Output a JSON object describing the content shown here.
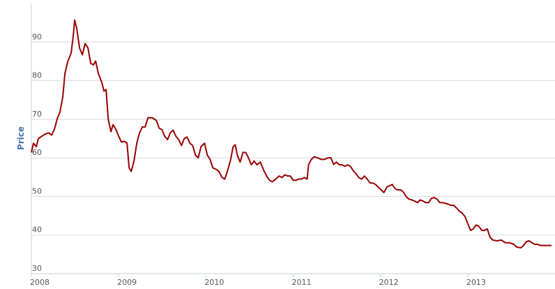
{
  "chart_data": {
    "type": "line",
    "y_label": "Price",
    "color": "#990000",
    "grid": true,
    "xlim": [
      2008,
      2014
    ],
    "xticks": [
      2008,
      2009,
      2010,
      2011,
      2012,
      2013
    ],
    "ylim": [
      30,
      100
    ],
    "yticks": [
      30,
      40,
      50,
      60,
      70,
      80,
      90
    ],
    "x": [
      2008.0,
      2008.024,
      2008.056,
      2008.08,
      2008.12,
      2008.152,
      2008.2,
      2008.232,
      2008.264,
      2008.296,
      2008.328,
      2008.36,
      2008.384,
      2008.416,
      2008.456,
      2008.48,
      2008.496,
      2008.52,
      2008.552,
      2008.584,
      2008.616,
      2008.648,
      2008.68,
      2008.712,
      2008.736,
      2008.768,
      2008.808,
      2008.832,
      2008.856,
      2008.88,
      2008.912,
      2008.936,
      2008.968,
      2009.0,
      2009.032,
      2009.064,
      2009.096,
      2009.12,
      2009.144,
      2009.176,
      2009.208,
      2009.24,
      2009.272,
      2009.304,
      2009.336,
      2009.384,
      2009.432,
      2009.464,
      2009.496,
      2009.528,
      2009.56,
      2009.592,
      2009.624,
      2009.656,
      2009.688,
      2009.72,
      2009.752,
      2009.784,
      2009.816,
      2009.848,
      2009.88,
      2009.912,
      2009.944,
      2009.984,
      2010.016,
      2010.048,
      2010.08,
      2010.12,
      2010.152,
      2010.184,
      2010.216,
      2010.248,
      2010.28,
      2010.312,
      2010.336,
      2010.36,
      2010.392,
      2010.424,
      2010.456,
      2010.488,
      2010.52,
      2010.552,
      2010.584,
      2010.624,
      2010.664,
      2010.696,
      2010.728,
      2010.76,
      2010.8,
      2010.84,
      2010.872,
      2010.904,
      2010.936,
      2010.968,
      2011.0,
      2011.032,
      2011.064,
      2011.096,
      2011.128,
      2011.16,
      2011.176,
      2011.208,
      2011.24,
      2011.28,
      2011.32,
      2011.36,
      2011.4,
      2011.432,
      2011.464,
      2011.496,
      2011.528,
      2011.56,
      2011.592,
      2011.624,
      2011.656,
      2011.688,
      2011.72,
      2011.752,
      2011.784,
      2011.816,
      2011.848,
      2011.88,
      2011.912,
      2011.944,
      2011.976,
      2012.008,
      2012.04,
      2012.072,
      2012.104,
      2012.136,
      2012.168,
      2012.2,
      2012.232,
      2012.264,
      2012.296,
      2012.328,
      2012.36,
      2012.392,
      2012.424,
      2012.456,
      2012.488,
      2012.52,
      2012.552,
      2012.584,
      2012.616,
      2012.648,
      2012.68,
      2012.712,
      2012.744,
      2012.776,
      2012.808,
      2012.84,
      2012.872,
      2012.904,
      2012.936,
      2012.968,
      2013.0,
      2013.032,
      2013.064,
      2013.096,
      2013.128,
      2013.16,
      2013.192,
      2013.224,
      2013.256,
      2013.288,
      2013.336,
      2013.384,
      2013.432,
      2013.48,
      2013.528,
      2013.56,
      2013.608,
      2013.64,
      2013.672,
      2013.704,
      2013.736,
      2013.768,
      2013.8,
      2013.832,
      2013.864,
      2013.896,
      2013.928,
      2013.96
    ],
    "values": [
      61.4,
      63.8,
      62.9,
      65,
      65.6,
      66.1,
      66.5,
      65.9,
      67.4,
      70.1,
      71.9,
      75.8,
      81.8,
      84.9,
      87.2,
      91.7,
      95.7,
      93.5,
      88.5,
      86.7,
      89.6,
      88.5,
      84.5,
      84.1,
      85.1,
      81.8,
      79.5,
      77.3,
      77.7,
      70.1,
      66.8,
      68.6,
      67.4,
      65.6,
      64.1,
      64.3,
      63.8,
      57.4,
      56.5,
      59.2,
      63.8,
      66.5,
      68,
      68,
      70.4,
      70.4,
      69.7,
      67.7,
      67.3,
      65.6,
      64.7,
      66.5,
      67.2,
      65.6,
      64.7,
      63.2,
      65,
      65.4,
      63.8,
      63.2,
      60.7,
      60,
      62.9,
      63.8,
      60.7,
      59.6,
      57.4,
      57,
      56.4,
      54.9,
      54.5,
      56.7,
      59.2,
      62.9,
      63.4,
      60.7,
      58.9,
      61.4,
      61.4,
      60,
      58.2,
      59.2,
      58.2,
      58.9,
      56.7,
      55.3,
      54.2,
      53.8,
      54.5,
      55.3,
      54.9,
      55.6,
      55.3,
      55.3,
      54.2,
      54.2,
      54.5,
      54.5,
      54.9,
      54.5,
      58.2,
      59.6,
      60.3,
      60,
      59.6,
      59.6,
      60,
      60,
      58.3,
      58.9,
      58.2,
      58.2,
      57.8,
      58.2,
      57.8,
      56.7,
      55.9,
      54.9,
      54.5,
      55.3,
      54.5,
      53.5,
      53.5,
      53.1,
      52.4,
      51.7,
      51,
      52.4,
      52.8,
      53.1,
      52,
      51.7,
      51.7,
      51.1,
      49.9,
      49.3,
      49.1,
      48.8,
      48.4,
      49.1,
      48.8,
      48.4,
      48.4,
      49.5,
      49.7,
      49.3,
      48.4,
      48.4,
      48.2,
      48,
      47.7,
      47.7,
      47,
      46.2,
      45.7,
      44.8,
      43,
      41.2,
      41.6,
      42.6,
      42.3,
      41.2,
      41.2,
      41.6,
      39.4,
      38.7,
      38.5,
      38.7,
      38,
      38,
      37.6,
      36.9,
      36.7,
      37.3,
      38.3,
      38.5,
      38,
      37.6,
      37.6,
      37.3,
      37.3,
      37.3,
      37.3,
      37.3
    ]
  }
}
